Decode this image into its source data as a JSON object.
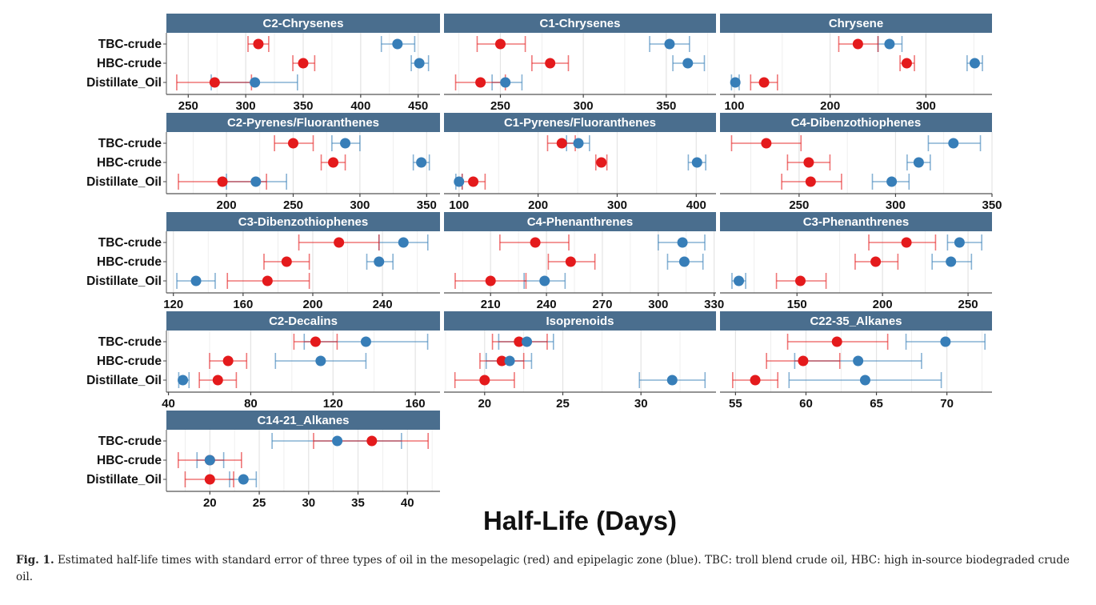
{
  "chart_data": {
    "type": "scatter",
    "subtype": "dot-with-error-bars, faceted",
    "xlabel": "Half-Life (Days)",
    "categories": [
      "TBC-crude",
      "HBC-crude",
      "Distillate_Oil"
    ],
    "zones": {
      "mesopelagic": {
        "color": "#e41a1c"
      },
      "epipelagic": {
        "color": "#377eb8"
      }
    },
    "grid": true,
    "header_color": "#4a6e8e",
    "panels": [
      {
        "title": "C2-Chrysenes",
        "xlim": [
          231,
          469
        ],
        "ticks": [
          250,
          300,
          350,
          400,
          450
        ],
        "mesopelagic": [
          {
            "category": "TBC-crude",
            "value": 311,
            "lo": 302,
            "hi": 320
          },
          {
            "category": "HBC-crude",
            "value": 350,
            "lo": 341,
            "hi": 360
          },
          {
            "category": "Distillate_Oil",
            "value": 273,
            "lo": 240,
            "hi": 305
          }
        ],
        "epipelagic": [
          {
            "category": "TBC-crude",
            "value": 432,
            "lo": 418,
            "hi": 447
          },
          {
            "category": "HBC-crude",
            "value": 451,
            "lo": 444,
            "hi": 459
          },
          {
            "category": "Distillate_Oil",
            "value": 308,
            "lo": 270,
            "hi": 345
          }
        ]
      },
      {
        "title": "C1-Chrysenes",
        "xlim": [
          216,
          380
        ],
        "ticks": [
          250,
          300,
          350
        ],
        "mesopelagic": [
          {
            "category": "TBC-crude",
            "value": 250,
            "lo": 236,
            "hi": 265
          },
          {
            "category": "HBC-crude",
            "value": 280,
            "lo": 269,
            "hi": 291
          },
          {
            "category": "Distillate_Oil",
            "value": 238,
            "lo": 223,
            "hi": 253
          }
        ],
        "epipelagic": [
          {
            "category": "TBC-crude",
            "value": 352,
            "lo": 340,
            "hi": 364
          },
          {
            "category": "HBC-crude",
            "value": 363,
            "lo": 354,
            "hi": 373
          },
          {
            "category": "Distillate_Oil",
            "value": 253,
            "lo": 245,
            "hi": 263
          }
        ]
      },
      {
        "title": "Chrysene",
        "xlim": [
          85,
          369
        ],
        "ticks": [
          100,
          200,
          300
        ],
        "mesopelagic": [
          {
            "category": "TBC-crude",
            "value": 229,
            "lo": 209,
            "hi": 250
          },
          {
            "category": "HBC-crude",
            "value": 280,
            "lo": 273,
            "hi": 288
          },
          {
            "category": "Distillate_Oil",
            "value": 131,
            "lo": 117,
            "hi": 145
          }
        ],
        "epipelagic": [
          {
            "category": "TBC-crude",
            "value": 262,
            "lo": 250,
            "hi": 275
          },
          {
            "category": "HBC-crude",
            "value": 351,
            "lo": 343,
            "hi": 359
          },
          {
            "category": "Distillate_Oil",
            "value": 101,
            "lo": 97,
            "hi": 105
          }
        ]
      },
      {
        "title": "C2-Pyrenes/Fluoranthenes",
        "xlim": [
          155,
          360
        ],
        "ticks": [
          200,
          250,
          300,
          350
        ],
        "mesopelagic": [
          {
            "category": "TBC-crude",
            "value": 250,
            "lo": 236,
            "hi": 265
          },
          {
            "category": "HBC-crude",
            "value": 280,
            "lo": 271,
            "hi": 289
          },
          {
            "category": "Distillate_Oil",
            "value": 197,
            "lo": 164,
            "hi": 230
          }
        ],
        "epipelagic": [
          {
            "category": "TBC-crude",
            "value": 289,
            "lo": 279,
            "hi": 300
          },
          {
            "category": "HBC-crude",
            "value": 346,
            "lo": 340,
            "hi": 352
          },
          {
            "category": "Distillate_Oil",
            "value": 222,
            "lo": 200,
            "hi": 245
          }
        ]
      },
      {
        "title": "C1-Pyrenes/Fluoranthenes",
        "xlim": [
          81,
          425
        ],
        "ticks": [
          100,
          200,
          300,
          400
        ],
        "mesopelagic": [
          {
            "category": "TBC-crude",
            "value": 230,
            "lo": 212,
            "hi": 247
          },
          {
            "category": "HBC-crude",
            "value": 280,
            "lo": 273,
            "hi": 287
          },
          {
            "category": "Distillate_Oil",
            "value": 118,
            "lo": 104,
            "hi": 133
          }
        ],
        "epipelagic": [
          {
            "category": "TBC-crude",
            "value": 251,
            "lo": 236,
            "hi": 265
          },
          {
            "category": "HBC-crude",
            "value": 401,
            "lo": 390,
            "hi": 412
          },
          {
            "category": "Distillate_Oil",
            "value": 100,
            "lo": 96,
            "hi": 104
          }
        ]
      },
      {
        "title": "C4-Dibenzothiophenes",
        "xlim": [
          209,
          350
        ],
        "ticks": [
          250,
          300,
          350
        ],
        "mesopelagic": [
          {
            "category": "TBC-crude",
            "value": 233,
            "lo": 215,
            "hi": 251
          },
          {
            "category": "HBC-crude",
            "value": 255,
            "lo": 244,
            "hi": 266
          },
          {
            "category": "Distillate_Oil",
            "value": 256,
            "lo": 241,
            "hi": 272
          }
        ],
        "epipelagic": [
          {
            "category": "TBC-crude",
            "value": 330,
            "lo": 317,
            "hi": 344
          },
          {
            "category": "HBC-crude",
            "value": 312,
            "lo": 306,
            "hi": 318
          },
          {
            "category": "Distillate_Oil",
            "value": 298,
            "lo": 288,
            "hi": 307
          }
        ]
      },
      {
        "title": "C3-Dibenzothiophenes",
        "xlim": [
          116,
          273
        ],
        "ticks": [
          120,
          160,
          200,
          240
        ],
        "mesopelagic": [
          {
            "category": "TBC-crude",
            "value": 215,
            "lo": 192,
            "hi": 238
          },
          {
            "category": "HBC-crude",
            "value": 185,
            "lo": 172,
            "hi": 198
          },
          {
            "category": "Distillate_Oil",
            "value": 174,
            "lo": 151,
            "hi": 198
          }
        ],
        "epipelagic": [
          {
            "category": "TBC-crude",
            "value": 252,
            "lo": 238,
            "hi": 266
          },
          {
            "category": "HBC-crude",
            "value": 238,
            "lo": 231,
            "hi": 246
          },
          {
            "category": "Distillate_Oil",
            "value": 133,
            "lo": 122,
            "hi": 144
          }
        ]
      },
      {
        "title": "C4-Phenanthrenes",
        "xlim": [
          185,
          331
        ],
        "ticks": [
          210,
          240,
          270,
          300,
          330
        ],
        "mesopelagic": [
          {
            "category": "TBC-crude",
            "value": 234,
            "lo": 215,
            "hi": 252
          },
          {
            "category": "HBC-crude",
            "value": 253,
            "lo": 241,
            "hi": 266
          },
          {
            "category": "Distillate_Oil",
            "value": 210,
            "lo": 191,
            "hi": 229
          }
        ],
        "epipelagic": [
          {
            "category": "TBC-crude",
            "value": 313,
            "lo": 300,
            "hi": 325
          },
          {
            "category": "HBC-crude",
            "value": 314,
            "lo": 305,
            "hi": 324
          },
          {
            "category": "Distillate_Oil",
            "value": 239,
            "lo": 228,
            "hi": 250
          }
        ]
      },
      {
        "title": "C3-Phenanthrenes",
        "xlim": [
          105,
          264
        ],
        "ticks": [
          150,
          200,
          250
        ],
        "mesopelagic": [
          {
            "category": "TBC-crude",
            "value": 214,
            "lo": 192,
            "hi": 231
          },
          {
            "category": "HBC-crude",
            "value": 196,
            "lo": 184,
            "hi": 209
          },
          {
            "category": "Distillate_Oil",
            "value": 152,
            "lo": 138,
            "hi": 167
          }
        ],
        "epipelagic": [
          {
            "category": "TBC-crude",
            "value": 245,
            "lo": 238,
            "hi": 258
          },
          {
            "category": "HBC-crude",
            "value": 240,
            "lo": 229,
            "hi": 252
          },
          {
            "category": "Distillate_Oil",
            "value": 116,
            "lo": 112,
            "hi": 120
          }
        ]
      },
      {
        "title": "C2-Decalins",
        "xlim": [
          39,
          172
        ],
        "ticks": [
          40,
          80,
          120,
          160
        ],
        "mesopelagic": [
          {
            "category": "TBC-crude",
            "value": 111.5,
            "lo": 101,
            "hi": 122
          },
          {
            "category": "HBC-crude",
            "value": 69,
            "lo": 60,
            "hi": 78
          },
          {
            "category": "Distillate_Oil",
            "value": 64,
            "lo": 55,
            "hi": 73
          }
        ],
        "epipelagic": [
          {
            "category": "TBC-crude",
            "value": 136,
            "lo": 106,
            "hi": 166
          },
          {
            "category": "HBC-crude",
            "value": 114,
            "lo": 92,
            "hi": 136
          },
          {
            "category": "Distillate_Oil",
            "value": 47,
            "lo": 45,
            "hi": 50
          }
        ]
      },
      {
        "title": "Isoprenoids",
        "xlim": [
          17.4,
          34.8
        ],
        "ticks": [
          20,
          25,
          30
        ],
        "mesopelagic": [
          {
            "category": "TBC-crude",
            "value": 22.2,
            "lo": 20.5,
            "hi": 24.0
          },
          {
            "category": "HBC-crude",
            "value": 21.1,
            "lo": 19.7,
            "hi": 22.5
          },
          {
            "category": "Distillate_Oil",
            "value": 20.0,
            "lo": 18.1,
            "hi": 21.9
          }
        ],
        "epipelagic": [
          {
            "category": "TBC-crude",
            "value": 22.7,
            "lo": 20.9,
            "hi": 24.4
          },
          {
            "category": "HBC-crude",
            "value": 21.6,
            "lo": 20.1,
            "hi": 23.0
          },
          {
            "category": "Distillate_Oil",
            "value": 32.0,
            "lo": 29.9,
            "hi": 34.1
          }
        ]
      },
      {
        "title": "C22-35_Alkanes",
        "xlim": [
          53.9,
          73.2
        ],
        "ticks": [
          55,
          60,
          65,
          70
        ],
        "mesopelagic": [
          {
            "category": "TBC-crude",
            "value": 62.2,
            "lo": 58.7,
            "hi": 65.8
          },
          {
            "category": "HBC-crude",
            "value": 59.8,
            "lo": 57.2,
            "hi": 62.4
          },
          {
            "category": "Distillate_Oil",
            "value": 56.4,
            "lo": 54.8,
            "hi": 58.0
          }
        ],
        "epipelagic": [
          {
            "category": "TBC-crude",
            "value": 69.9,
            "lo": 67.1,
            "hi": 72.7
          },
          {
            "category": "HBC-crude",
            "value": 63.7,
            "lo": 59.2,
            "hi": 68.2
          },
          {
            "category": "Distillate_Oil",
            "value": 64.2,
            "lo": 58.8,
            "hi": 69.6
          }
        ]
      },
      {
        "title": "C14-21_Alkanes",
        "xlim": [
          15.6,
          43.3
        ],
        "ticks": [
          20,
          25,
          30,
          35,
          40
        ],
        "mesopelagic": [
          {
            "category": "TBC-crude",
            "value": 36.4,
            "lo": 30.5,
            "hi": 42.1
          },
          {
            "category": "HBC-crude",
            "value": 20.0,
            "lo": 16.8,
            "hi": 23.2
          },
          {
            "category": "Distillate_Oil",
            "value": 20.0,
            "lo": 17.5,
            "hi": 22.4
          }
        ],
        "epipelagic": [
          {
            "category": "TBC-crude",
            "value": 32.9,
            "lo": 26.3,
            "hi": 39.4
          },
          {
            "category": "HBC-crude",
            "value": 20.0,
            "lo": 18.7,
            "hi": 21.4
          },
          {
            "category": "Distillate_Oil",
            "value": 23.4,
            "lo": 22.0,
            "hi": 24.7
          }
        ]
      }
    ]
  },
  "caption": {
    "label": "Fig. 1.",
    "text": "Estimated half-life times with standard error of three types of oil in the mesopelagic (red) and epipelagic zone (blue). TBC: troll blend crude oil, HBC: high in-source biodegraded crude oil."
  }
}
